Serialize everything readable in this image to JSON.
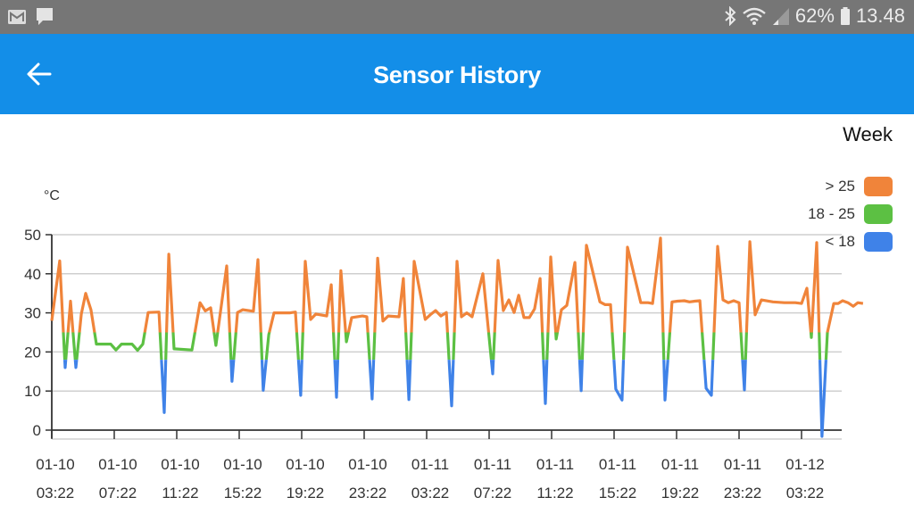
{
  "status_bar": {
    "left_icons": [
      "gmail-icon",
      "message-icon"
    ],
    "right_icons": [
      "bluetooth-icon",
      "wifi-icon",
      "signal-icon"
    ],
    "battery_percent": "62%",
    "time": "13.48"
  },
  "app_bar": {
    "back_icon": "arrow-left-icon",
    "title": "Sensor History",
    "background": "#138ee8"
  },
  "range_label": "Week",
  "legend": [
    {
      "label": "> 25",
      "color": "#f0843a"
    },
    {
      "label": "18 - 25",
      "color": "#5cc043"
    },
    {
      "label": "< 18",
      "color": "#3f82e8"
    }
  ],
  "unit_label": "°C",
  "chart_data": {
    "type": "line",
    "title": "Sensor History",
    "xlabel": "",
    "ylabel": "°C",
    "ylim": [
      0,
      50
    ],
    "yticks": [
      0,
      10,
      20,
      30,
      40,
      50
    ],
    "grid": true,
    "legend_position": "top-right",
    "thresholds": [
      {
        "range": "> 25",
        "color": "#f0843a"
      },
      {
        "range": "18 - 25",
        "color": "#5cc043"
      },
      {
        "range": "< 18",
        "color": "#3f82e8"
      }
    ],
    "x_ticks": [
      {
        "date": "01-10",
        "time": "03:22"
      },
      {
        "date": "01-10",
        "time": "07:22"
      },
      {
        "date": "01-10",
        "time": "11:22"
      },
      {
        "date": "01-10",
        "time": "15:22"
      },
      {
        "date": "01-10",
        "time": "19:22"
      },
      {
        "date": "01-10",
        "time": "23:22"
      },
      {
        "date": "01-11",
        "time": "03:22"
      },
      {
        "date": "01-11",
        "time": "07:22"
      },
      {
        "date": "01-11",
        "time": "11:22"
      },
      {
        "date": "01-11",
        "time": "15:22"
      },
      {
        "date": "01-11",
        "time": "19:22"
      },
      {
        "date": "01-11",
        "time": "23:22"
      },
      {
        "date": "01-12",
        "time": "03:22"
      }
    ],
    "x_hours_from_start": [
      0,
      0.51,
      0.86,
      1.2,
      1.54,
      1.89,
      2.17,
      2.51,
      2.86,
      3.77,
      4.11,
      4.46,
      5.14,
      5.49,
      5.83,
      6.17,
      6.86,
      7.2,
      7.49,
      7.83,
      8.97,
      9.49,
      9.83,
      10.17,
      10.51,
      11.2,
      11.54,
      11.89,
      12.23,
      12.91,
      13.2,
      13.54,
      13.89,
      14.23,
      15.26,
      15.6,
      15.94,
      16.23,
      16.57,
      16.91,
      17.6,
      17.89,
      18.23,
      18.51,
      18.86,
      19.2,
      19.89,
      20.17,
      20.51,
      20.86,
      21.2,
      21.54,
      22.23,
      22.51,
      22.86,
      23.2,
      23.91,
      24.23,
      24.57,
      24.91,
      25.26,
      25.6,
      25.94,
      26.23,
      26.57,
      26.91,
      27.6,
      28.23,
      28.57,
      28.91,
      29.26,
      29.6,
      29.89,
      30.23,
      30.57,
      30.91,
      31.26,
      31.6,
      31.94,
      32.29,
      32.63,
      32.97,
      33.49,
      33.89,
      34.23,
      35.09,
      35.43,
      35.77,
      36.11,
      36.51,
      36.86,
      37.71,
      38.17,
      38.46,
      38.97,
      39.26,
      39.71,
      40.06,
      40.49,
      40.83,
      41.17,
      41.49,
      41.89,
      42.23,
      42.63,
      42.97,
      43.31,
      43.66,
      44.0,
      44.34,
      44.69,
      45.03,
      45.43,
      46.17,
      46.91,
      47.6,
      48.0,
      48.34,
      48.63,
      48.97,
      49.31,
      49.66,
      50.06,
      50.34,
      50.63,
      50.97,
      51.31,
      51.6,
      51.94
    ],
    "values": [
      28,
      43.3,
      16,
      33,
      16,
      29.7,
      35,
      30.8,
      22,
      22,
      20.5,
      22,
      22,
      20.4,
      22,
      30.1,
      30.2,
      4.5,
      45,
      20.8,
      20.5,
      32.6,
      30.5,
      31.3,
      21.7,
      42,
      12.5,
      30.1,
      30.8,
      30.4,
      43.6,
      10.2,
      24.4,
      30,
      30,
      30.2,
      8.9,
      43.2,
      28.3,
      29.7,
      29.2,
      37.2,
      8.4,
      40.8,
      22.6,
      28.8,
      29.2,
      29,
      8,
      44,
      27.9,
      29.2,
      29,
      38.8,
      7.8,
      43.2,
      28.3,
      29.5,
      30.6,
      29.2,
      30.1,
      6.2,
      43.2,
      29,
      30,
      29,
      40,
      14.4,
      43.4,
      30.6,
      33.3,
      30.1,
      34.5,
      28.8,
      28.8,
      31,
      38.8,
      6.8,
      44.3,
      23.3,
      30.8,
      31.9,
      42.9,
      10.1,
      47.3,
      32.8,
      32.1,
      32.1,
      10.5,
      7.7,
      46.8,
      32.6,
      32.6,
      32.4,
      49.1,
      7.7,
      32.8,
      33,
      33.1,
      32.8,
      33,
      33.1,
      10.7,
      8.9,
      47,
      33.3,
      32.6,
      33.1,
      32.6,
      10.3,
      48.2,
      29.5,
      33.3,
      32.8,
      32.6,
      32.6,
      32.4,
      36.3,
      23.7,
      48,
      -1.6,
      25,
      32.4,
      32.4,
      33.1,
      32.6,
      31.7,
      32.6,
      32.4
    ]
  }
}
